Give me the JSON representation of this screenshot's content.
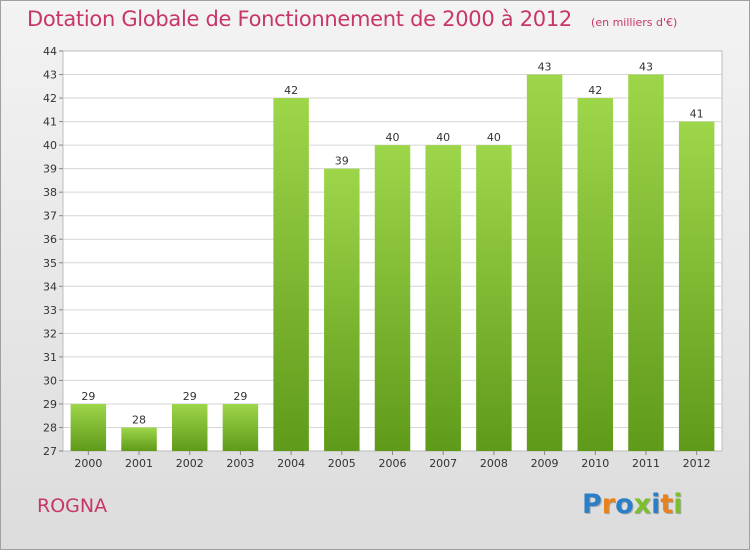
{
  "header": {
    "title": "Dotation Globale de Fonctionnement de 2000 à 2012",
    "unit": "(en milliers d'€)"
  },
  "footer": {
    "commune": "ROGNA",
    "brand": "Proxiti"
  },
  "colors": {
    "accent": "#c8356a",
    "bar_light": "#9ed64a",
    "bar_dark": "#5f9a1a",
    "brand_letters": [
      "#2b7fc8",
      "#e8821e",
      "#2b7fc8",
      "#7bbf2a",
      "#2b7fc8",
      "#e8821e",
      "#7bbf2a"
    ]
  },
  "chart_data": {
    "type": "bar",
    "categories": [
      "2000",
      "2001",
      "2002",
      "2003",
      "2004",
      "2005",
      "2006",
      "2007",
      "2008",
      "2009",
      "2010",
      "2011",
      "2012"
    ],
    "values": [
      29,
      28,
      29,
      29,
      42,
      39,
      40,
      40,
      40,
      43,
      42,
      43,
      41
    ],
    "ylim": [
      27,
      44
    ],
    "yticks": [
      27,
      28,
      29,
      30,
      31,
      32,
      33,
      34,
      35,
      36,
      37,
      38,
      39,
      40,
      41,
      42,
      43,
      44
    ],
    "grid": true,
    "data_labels": true
  }
}
